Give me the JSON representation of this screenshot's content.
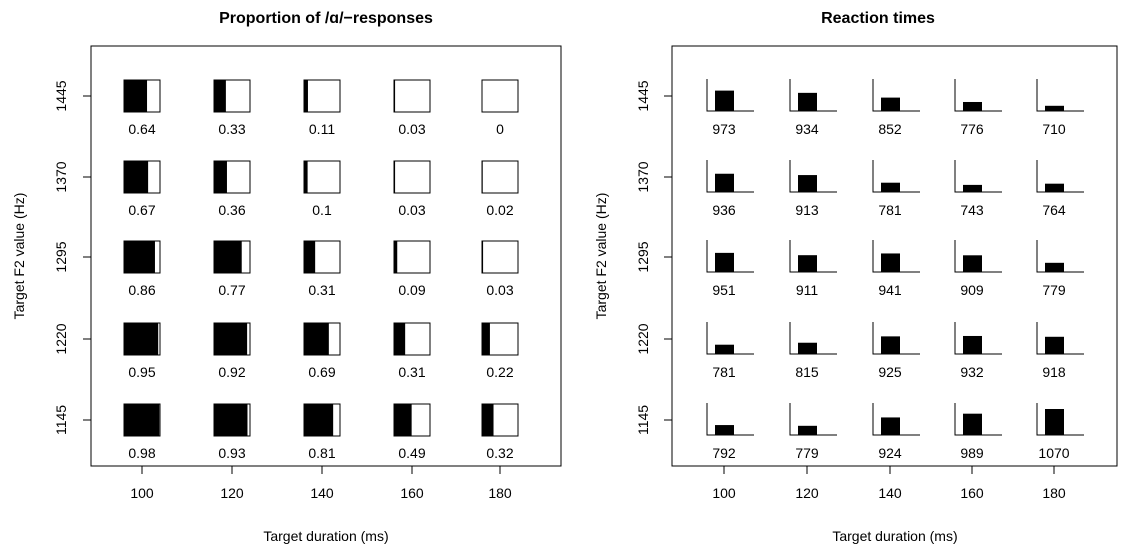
{
  "chart_data": [
    {
      "type": "proportion-glyph-grid",
      "title": "Proportion of /ɑ/−responses",
      "xlabel": "Target duration (ms)",
      "ylabel": "Target F2 value (Hz)",
      "x": [
        "100",
        "120",
        "140",
        "160",
        "180"
      ],
      "y": [
        "1445",
        "1370",
        "1295",
        "1220",
        "1145"
      ],
      "values": [
        [
          0.64,
          0.33,
          0.11,
          0.03,
          0
        ],
        [
          0.67,
          0.36,
          0.1,
          0.03,
          0.02
        ],
        [
          0.86,
          0.77,
          0.31,
          0.09,
          0.03
        ],
        [
          0.95,
          0.92,
          0.69,
          0.31,
          0.22
        ],
        [
          0.98,
          0.93,
          0.81,
          0.49,
          0.32
        ]
      ],
      "value_labels": [
        [
          "0.64",
          "0.33",
          "0.11",
          "0.03",
          "0"
        ],
        [
          "0.67",
          "0.36",
          "0.1",
          "0.03",
          "0.02"
        ],
        [
          "0.86",
          "0.77",
          "0.31",
          "0.09",
          "0.03"
        ],
        [
          "0.95",
          "0.92",
          "0.69",
          "0.31",
          "0.22"
        ],
        [
          "0.98",
          "0.93",
          "0.81",
          "0.49",
          "0.32"
        ]
      ],
      "fill_range": [
        0,
        1
      ]
    },
    {
      "type": "bar-glyph-grid",
      "title": "Reaction times",
      "xlabel": "Target duration (ms)",
      "ylabel": "Target F2 value (Hz)",
      "x": [
        "100",
        "120",
        "140",
        "160",
        "180"
      ],
      "y": [
        "1445",
        "1370",
        "1295",
        "1220",
        "1145"
      ],
      "values": [
        [
          973,
          934,
          852,
          776,
          710
        ],
        [
          936,
          913,
          781,
          743,
          764
        ],
        [
          951,
          911,
          941,
          909,
          779
        ],
        [
          781,
          815,
          925,
          932,
          918
        ],
        [
          792,
          779,
          924,
          989,
          1070
        ]
      ],
      "value_labels": [
        [
          "973",
          "934",
          "852",
          "776",
          "710"
        ],
        [
          "936",
          "913",
          "781",
          "743",
          "764"
        ],
        [
          "951",
          "911",
          "941",
          "909",
          "779"
        ],
        [
          "781",
          "815",
          "925",
          "932",
          "918"
        ],
        [
          "792",
          "779",
          "924",
          "989",
          "1070"
        ]
      ],
      "bar_baseline": 620
    }
  ]
}
